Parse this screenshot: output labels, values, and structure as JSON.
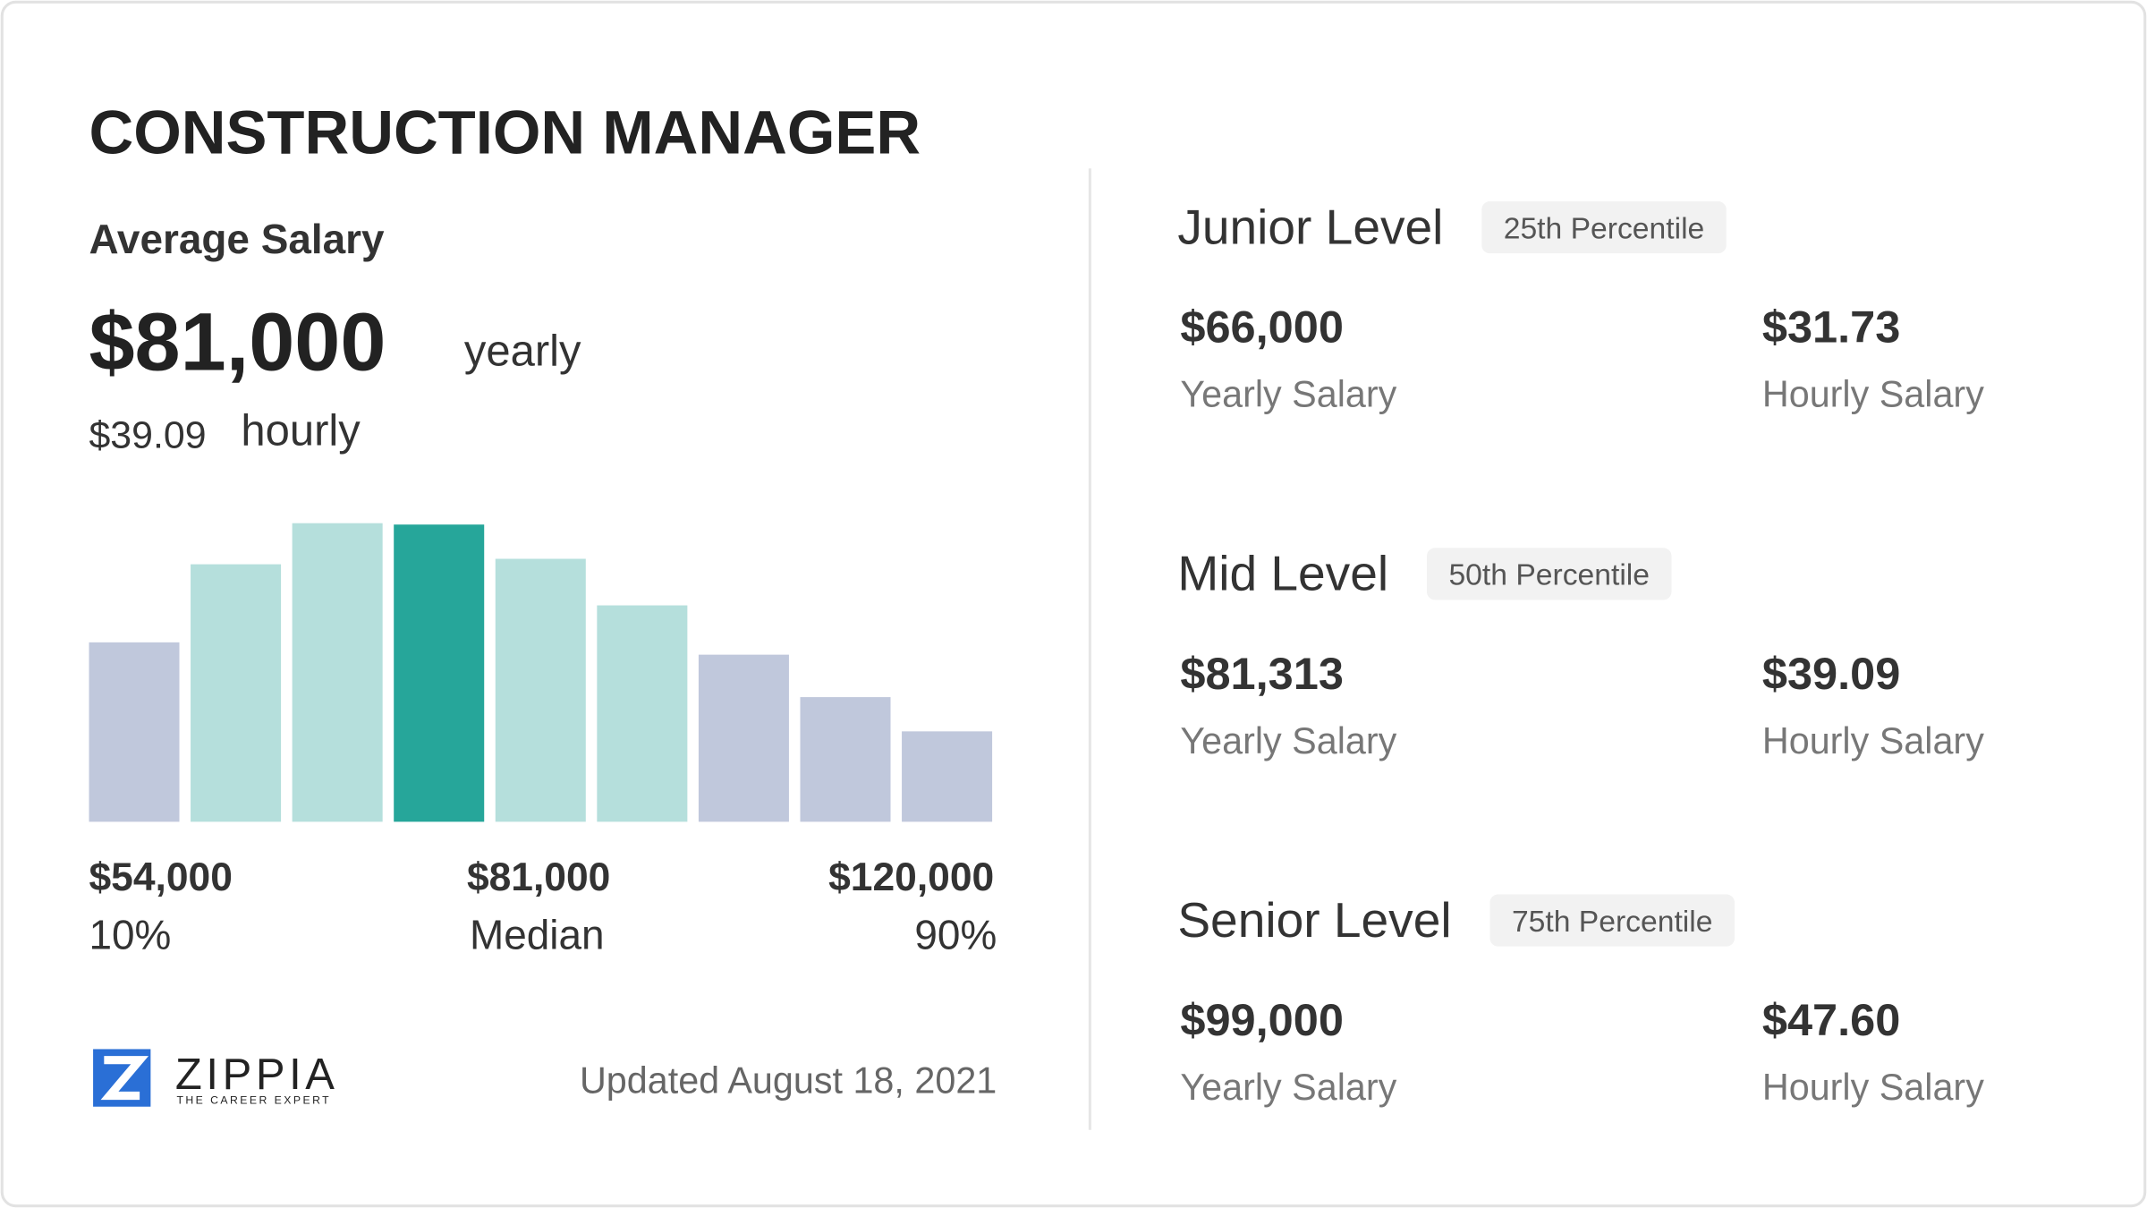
{
  "title": "CONSTRUCTION MANAGER",
  "average": {
    "label": "Average Salary",
    "yearly": "$81,000",
    "yearly_unit": "yearly",
    "hourly": "$39.09",
    "hourly_unit": "hourly"
  },
  "chart_data": {
    "type": "bar",
    "values": [
      131,
      188,
      218,
      217,
      192,
      158,
      122,
      91,
      66
    ],
    "colors": [
      "#c0c8dc",
      "#b5dfdc",
      "#b5dfdc",
      "#26a69a",
      "#b5dfdc",
      "#b5dfdc",
      "#c0c8dc",
      "#c0c8dc",
      "#c0c8dc"
    ]
  },
  "range": [
    {
      "amount": "$54,000",
      "label": "10%"
    },
    {
      "amount": "$81,000",
      "label": "Median"
    },
    {
      "amount": "$120,000",
      "label": "90%"
    }
  ],
  "logo": {
    "name": "ZIPPIA",
    "tagline": "THE CAREER EXPERT"
  },
  "updated": "Updated August 18, 2021",
  "levels": [
    {
      "name": "Junior Level",
      "percentile": "25th Percentile",
      "yearly": "$66,000",
      "yearly_label": "Yearly Salary",
      "hourly": "$31.73",
      "hourly_label": "Hourly Salary"
    },
    {
      "name": "Mid Level",
      "percentile": "50th Percentile",
      "yearly": "$81,313",
      "yearly_label": "Yearly Salary",
      "hourly": "$39.09",
      "hourly_label": "Hourly Salary"
    },
    {
      "name": "Senior Level",
      "percentile": "75th Percentile",
      "yearly": "$99,000",
      "yearly_label": "Yearly Salary",
      "hourly": "$47.60",
      "hourly_label": "Hourly Salary"
    }
  ]
}
